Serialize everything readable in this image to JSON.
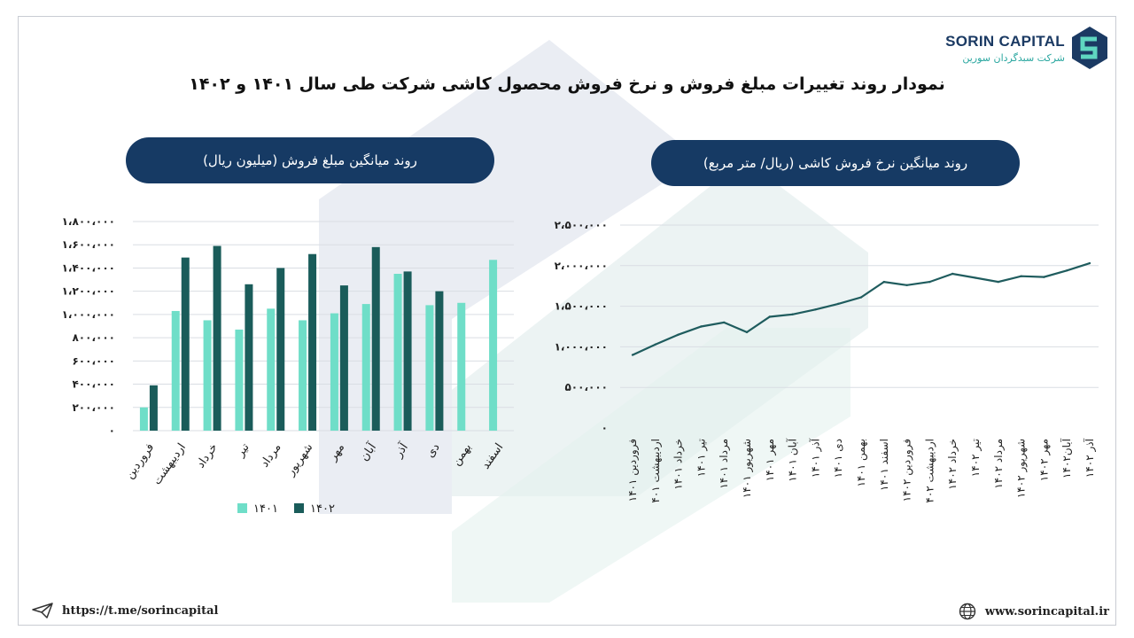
{
  "logo": {
    "name": "SORIN CAPITAL",
    "subtitle": "شرکت سبدگردان سورین"
  },
  "title": "نمودار روند تغییرات مبلغ فروش و نرخ فروش  محصول کاشی شرکت طی سال  ۱۴۰۱ و ۱۴۰۲",
  "footer": {
    "telegram": "https://t.me/sorincapital",
    "website": "www.sorincapital.ir"
  },
  "colors": {
    "series_1401": "#6fdec8",
    "series_1402": "#1a5c5a",
    "line": "#1f5c5e",
    "pill": "#163a64"
  },
  "chart_data": [
    {
      "type": "bar",
      "title": "روند میانگین مبلغ فروش (میلیون ریال)",
      "categories": [
        "فروردین",
        "اردیبهشت",
        "خرداد",
        "تیر",
        "مرداد",
        "شهریور",
        "مهر",
        "آبان",
        "آذر",
        "دی",
        "بهمن",
        "اسفند"
      ],
      "series": [
        {
          "name": "۱۴۰۱",
          "values": [
            200000,
            1030000,
            950000,
            870000,
            1050000,
            950000,
            1010000,
            1090000,
            1350000,
            1080000,
            1100000,
            1470000
          ]
        },
        {
          "name": "۱۴۰۲",
          "values": [
            390000,
            1490000,
            1590000,
            1260000,
            1400000,
            1520000,
            1250000,
            1580000,
            1370000,
            1200000,
            null,
            null
          ]
        }
      ],
      "yticks": [
        "۰",
        "۲۰۰،۰۰۰",
        "۴۰۰،۰۰۰",
        "۶۰۰،۰۰۰",
        "۸۰۰،۰۰۰",
        "۱،۰۰۰،۰۰۰",
        "۱،۲۰۰،۰۰۰",
        "۱،۴۰۰،۰۰۰",
        "۱،۶۰۰،۰۰۰",
        "۱،۸۰۰،۰۰۰"
      ],
      "ylim": [
        0,
        1800000
      ],
      "grid": true,
      "legend": "bottom"
    },
    {
      "type": "line",
      "title": "روند میانگین نرخ فروش کاشی (ریال/ متر مربع)",
      "categories": [
        "فروردین ۱۴۰۱",
        "اردیبهشت ۱۴۰۱",
        "خرداد ۱۴۰۱",
        "تیر ۱۴۰۱",
        "مرداد ۱۴۰۱",
        "شهریور ۱۴۰۱",
        "مهر ۱۴۰۱",
        "آبان ۱۴۰۱",
        "آذر ۱۴۰۱",
        "دی ۱۴۰۱",
        "بهمن ۱۴۰۱",
        "اسفند ۱۴۰۱",
        "فروردین ۱۴۰۲",
        "اردیبهشت ۱۴۰۲",
        "خرداد ۱۴۰۲",
        "تیر ۱۴۰۲",
        "مرداد ۱۴۰۲",
        "شهریور ۱۴۰۲",
        "مهر ۱۴۰۲",
        "آبان۱۴۰۲",
        "آذر ۱۴۰۲"
      ],
      "values": [
        900000,
        1030000,
        1150000,
        1250000,
        1300000,
        1180000,
        1370000,
        1400000,
        1460000,
        1530000,
        1610000,
        1800000,
        1760000,
        1800000,
        1900000,
        1850000,
        1800000,
        1870000,
        1860000,
        1940000,
        2030000
      ],
      "yticks": [
        "۰",
        "۵۰۰،۰۰۰",
        "۱،۰۰۰،۰۰۰",
        "۱،۵۰۰،۰۰۰",
        "۲،۰۰۰،۰۰۰",
        "۲،۵۰۰،۰۰۰"
      ],
      "ylim": [
        0,
        2500000
      ],
      "grid": true
    }
  ]
}
